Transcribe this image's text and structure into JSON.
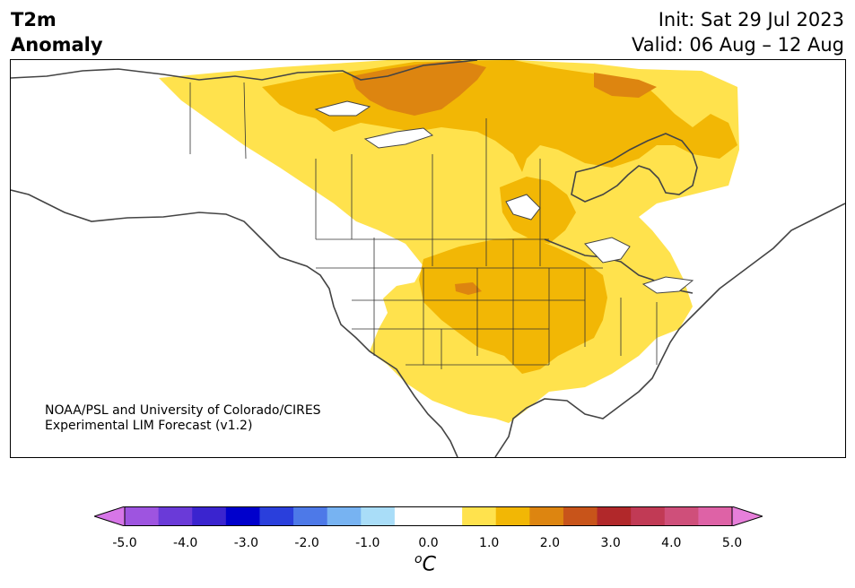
{
  "title": {
    "line1": "T2m",
    "line2": "Anomaly"
  },
  "dates": {
    "init": "Init: Sat 29 Jul 2023",
    "valid": "Valid: 06 Aug – 12 Aug"
  },
  "credit": {
    "line1": "NOAA/PSL and University of Colorado/CIRES",
    "line2": "Experimental LIM Forecast (v1.2)"
  },
  "colorbar": {
    "ticks": [
      "-5.0",
      "-4.0",
      "-3.0",
      "-2.0",
      "-1.0",
      "0.0",
      "1.0",
      "2.0",
      "3.0",
      "4.0",
      "5.0"
    ],
    "unit_base": "C",
    "unit_sup": "o",
    "under_color": "#d776e8",
    "over_color": "#e77fda",
    "colors": [
      "#d776e8",
      "#9e54e0",
      "#6a3ad8",
      "#3a24cf",
      "#0000cc",
      "#2a3fdc",
      "#4d79e8",
      "#77b3f2",
      "#a9ddf8",
      "#ffffff",
      "#ffffff",
      "#ffe24d",
      "#f2b705",
      "#dd8510",
      "#c8541a",
      "#b1282a",
      "#c13a55",
      "#cf4f7a",
      "#de62a6",
      "#e77fda"
    ]
  }
}
